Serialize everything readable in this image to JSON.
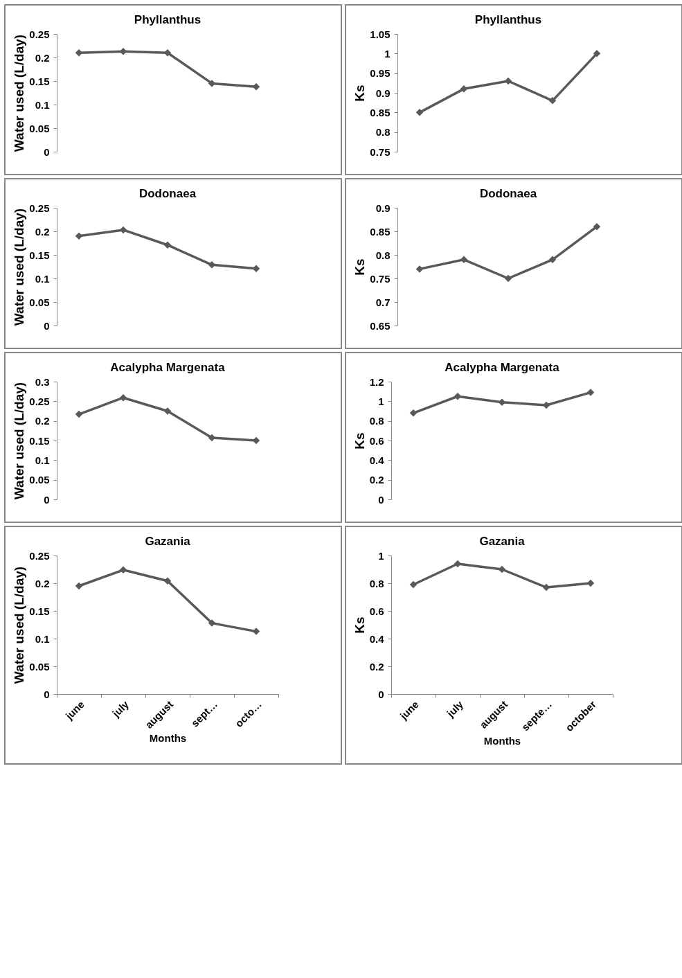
{
  "chart_data": [
    {
      "type": "line",
      "title": "Phyllanthus",
      "ylabel": "Water used (L/day)",
      "categories": [
        null,
        null,
        null,
        null,
        null
      ],
      "values": [
        0.21,
        0.213,
        0.21,
        0.145,
        0.138
      ],
      "color": "#595959",
      "marker": "diamond",
      "ylim": [
        0,
        0.25
      ],
      "yticks": [
        0,
        0.05,
        0.1,
        0.15,
        0.2,
        0.25
      ],
      "tick_labels": "y"
    },
    {
      "type": "line",
      "title": "Phyllanthus",
      "ylabel": "Ks",
      "categories": [
        null,
        null,
        null,
        null,
        null
      ],
      "values": [
        0.85,
        0.91,
        0.93,
        0.88,
        1.0
      ],
      "color": "#595959",
      "marker": "diamond",
      "ylim": [
        0.75,
        1.05
      ],
      "yticks": [
        0.75,
        0.8,
        0.85,
        0.9,
        0.95,
        1,
        1.05
      ],
      "tick_labels": "y"
    },
    {
      "type": "line",
      "title": "Dodonaea",
      "ylabel": "Water used (L/day)",
      "categories": [
        null,
        null,
        null,
        null,
        null
      ],
      "values": [
        0.19,
        0.203,
        0.171,
        0.129,
        0.121
      ],
      "color": "#595959",
      "marker": "diamond",
      "ylim": [
        0,
        0.25
      ],
      "yticks": [
        0,
        0.05,
        0.1,
        0.15,
        0.2,
        0.25
      ],
      "tick_labels": "y"
    },
    {
      "type": "line",
      "title": "Dodonaea",
      "ylabel": "Ks",
      "categories": [
        null,
        null,
        null,
        null,
        null
      ],
      "values": [
        0.77,
        0.79,
        0.75,
        0.79,
        0.86
      ],
      "color": "#595959",
      "marker": "diamond",
      "ylim": [
        0.65,
        0.9
      ],
      "yticks": [
        0.65,
        0.7,
        0.75,
        0.8,
        0.85,
        0.9
      ],
      "tick_labels": "y"
    },
    {
      "type": "line",
      "title": "Acalypha Margenata",
      "ylabel": "Water used (L/day)",
      "categories": [
        null,
        null,
        null,
        null,
        null
      ],
      "values": [
        0.217,
        0.259,
        0.225,
        0.157,
        0.15
      ],
      "color": "#595959",
      "marker": "diamond",
      "ylim": [
        0,
        0.3
      ],
      "yticks": [
        0,
        0.05,
        0.1,
        0.15,
        0.2,
        0.25,
        0.3
      ],
      "tick_labels": "y"
    },
    {
      "type": "line",
      "title": "Acalypha Margenata",
      "ylabel": "Ks",
      "categories": [
        null,
        null,
        null,
        null,
        null
      ],
      "values": [
        0.88,
        1.05,
        0.99,
        0.96,
        1.09
      ],
      "color": "#595959",
      "marker": "diamond",
      "ylim": [
        0,
        1.2
      ],
      "yticks": [
        0,
        0.2,
        0.4,
        0.6,
        0.8,
        1,
        1.2
      ],
      "tick_labels": "y"
    },
    {
      "type": "line",
      "title": "Gazania",
      "xlabel": "Months",
      "ylabel": "Water used (L/day)",
      "categories": [
        "june",
        "july",
        "august",
        "sept…",
        "octo…"
      ],
      "values": [
        0.195,
        0.224,
        0.204,
        0.128,
        0.113
      ],
      "color": "#595959",
      "marker": "diamond",
      "ylim": [
        0,
        0.25
      ],
      "yticks": [
        0,
        0.05,
        0.1,
        0.15,
        0.2,
        0.25
      ]
    },
    {
      "type": "line",
      "title": "Gazania",
      "xlabel": "Months",
      "ylabel": "Ks",
      "categories": [
        "june",
        "july",
        "august",
        "septe…",
        "october"
      ],
      "values": [
        0.79,
        0.94,
        0.9,
        0.77,
        0.8
      ],
      "color": "#595959",
      "marker": "diamond",
      "ylim": [
        0,
        1
      ],
      "yticks": [
        0,
        0.2,
        0.4,
        0.6,
        0.8,
        1
      ]
    }
  ]
}
